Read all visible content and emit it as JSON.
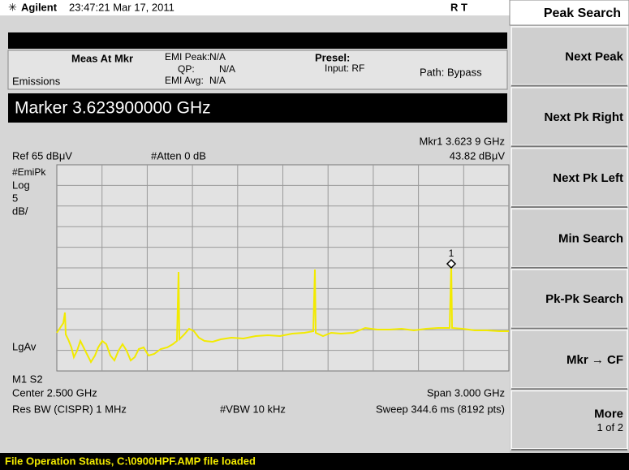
{
  "header": {
    "brand": "Agilent",
    "datetime": "23:47:21  Mar 17, 2011",
    "flags": "R    T"
  },
  "meas": {
    "meas_at_mkr": "Meas At Mkr",
    "emi_peak_label": "EMI Peak:",
    "emi_peak": "N/A",
    "qp_label": "QP:",
    "qp": "N/A",
    "emi_avg_label": "EMI Avg:",
    "emi_avg": "N/A",
    "presel": "Presel:",
    "input": "Input: RF",
    "path": "Path: Bypass",
    "emissions": "Emissions"
  },
  "marker_entry": "Marker 3.623900000 GHz",
  "readout": {
    "mkr": "Mkr1  3.623 9 GHz",
    "level": "43.82 dBμV",
    "ref": "Ref 65 dBμV",
    "atten": "#Atten 0 dB"
  },
  "left_labels": {
    "detector": "#EmiPk",
    "scale": "Log",
    "per_div": "5",
    "unit": "dB/",
    "avg": "LgAv",
    "markers": "M1  S2"
  },
  "marker_number": "1",
  "footer": {
    "center": "Center 2.500 GHz",
    "span": "Span 3.000 GHz",
    "res_bw": "Res BW (CISPR) 1 MHz",
    "vbw": "#VBW 10 kHz",
    "sweep": "Sweep 344.6 ms (8192 pts)"
  },
  "status": "File Operation Status, C:\\0900HPF.AMP file loaded",
  "menu": {
    "title": "Peak Search",
    "softkeys": [
      {
        "label": "Next Peak"
      },
      {
        "label": "Next Pk Right"
      },
      {
        "label": "Next Pk Left"
      },
      {
        "label": "Min Search"
      },
      {
        "label": "Pk-Pk Search"
      },
      {
        "label": "Mkr → CF"
      },
      {
        "label": "More",
        "sub": "1 of 2"
      }
    ]
  }
}
